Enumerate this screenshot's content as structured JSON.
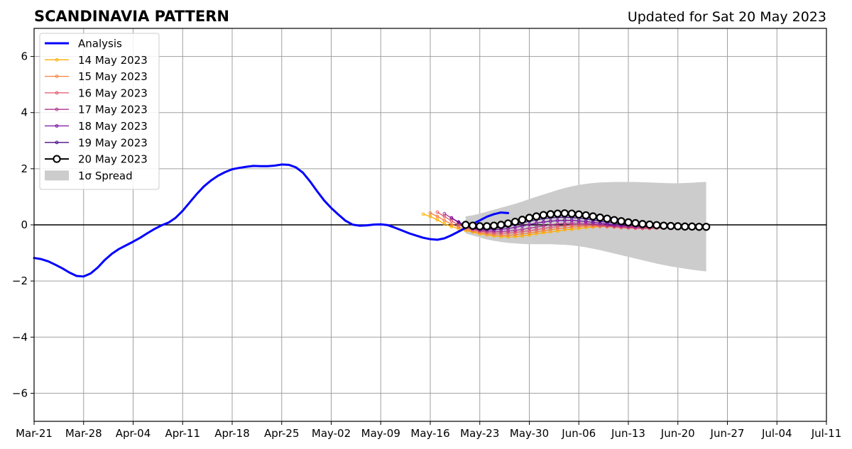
{
  "chart_data": {
    "type": "line",
    "title": "SCANDINAVIA PATTERN",
    "subtitle": "Updated for Sat 20 May 2023",
    "xlabel": "",
    "ylabel": "",
    "ylim": [
      -7,
      7
    ],
    "xlim": [
      "2023-03-21",
      "2023-07-11"
    ],
    "x_ticks": [
      "Mar-21",
      "Mar-28",
      "Apr-04",
      "Apr-11",
      "Apr-18",
      "Apr-25",
      "May-02",
      "May-09",
      "May-16",
      "May-23",
      "May-30",
      "Jun-06",
      "Jun-13",
      "Jun-20",
      "Jun-27",
      "Jul-04",
      "Jul-11"
    ],
    "y_ticks": [
      -6,
      -4,
      -2,
      0,
      2,
      4,
      6
    ],
    "y_tick_labels": [
      "−6",
      "−4",
      "−2",
      "0",
      "2",
      "4",
      "6"
    ],
    "grid": true,
    "legend_position": "upper-left",
    "analysis": {
      "name": "Analysis",
      "color": "#0000ff",
      "start_date": "2023-03-21",
      "values": [
        -1.18,
        -1.22,
        -1.3,
        -1.42,
        -1.55,
        -1.7,
        -1.82,
        -1.84,
        -1.73,
        -1.52,
        -1.25,
        -1.03,
        -0.86,
        -0.73,
        -0.6,
        -0.46,
        -0.3,
        -0.15,
        -0.02,
        0.08,
        0.25,
        0.5,
        0.8,
        1.1,
        1.37,
        1.58,
        1.75,
        1.88,
        1.98,
        2.03,
        2.07,
        2.1,
        2.09,
        2.09,
        2.11,
        2.15,
        2.14,
        2.05,
        1.86,
        1.55,
        1.2,
        0.87,
        0.6,
        0.37,
        0.15,
        0.01,
        -0.03,
        -0.02,
        0.01,
        0.02,
        -0.01,
        -0.1,
        -0.2,
        -0.3,
        -0.38,
        -0.46,
        -0.51,
        -0.53,
        -0.48,
        -0.37,
        -0.24,
        -0.11,
        0.03,
        0.16,
        0.29,
        0.38,
        0.44,
        0.42
      ]
    },
    "forecasts": [
      {
        "name": "14 May 2023",
        "color": "#ffb000",
        "start_date": "2023-05-15",
        "values": [
          0.38,
          0.3,
          0.18,
          0.04,
          -0.06,
          -0.14,
          -0.2,
          -0.26,
          -0.32,
          -0.36,
          -0.4,
          -0.42,
          -0.43,
          -0.42,
          -0.4,
          -0.36,
          -0.32,
          -0.28,
          -0.25,
          -0.22,
          -0.18,
          -0.16,
          -0.13,
          -0.1,
          -0.08,
          -0.06,
          -0.05,
          -0.05,
          -0.05,
          -0.06,
          -0.07,
          -0.08,
          -0.09,
          -0.1,
          -0.1
        ]
      },
      {
        "name": "15 May 2023",
        "color": "#f7823a",
        "start_date": "2023-05-16",
        "values": [
          0.42,
          0.3,
          0.16,
          0.02,
          -0.08,
          -0.16,
          -0.22,
          -0.28,
          -0.32,
          -0.35,
          -0.37,
          -0.37,
          -0.35,
          -0.32,
          -0.29,
          -0.25,
          -0.21,
          -0.17,
          -0.14,
          -0.11,
          -0.08,
          -0.06,
          -0.05,
          -0.05,
          -0.06,
          -0.07,
          -0.08,
          -0.1,
          -0.11,
          -0.12,
          -0.12,
          -0.12,
          -0.11,
          -0.1
        ]
      },
      {
        "name": "16 May 2023",
        "color": "#e4576b",
        "start_date": "2023-05-17",
        "values": [
          0.45,
          0.3,
          0.14,
          0.0,
          -0.1,
          -0.18,
          -0.23,
          -0.27,
          -0.29,
          -0.3,
          -0.29,
          -0.27,
          -0.24,
          -0.21,
          -0.17,
          -0.13,
          -0.09,
          -0.06,
          -0.03,
          -0.01,
          0.0,
          0.0,
          -0.01,
          -0.03,
          -0.05,
          -0.07,
          -0.09,
          -0.11,
          -0.12,
          -0.13,
          -0.13,
          -0.12,
          -0.1
        ]
      },
      {
        "name": "17 May 2023",
        "color": "#b0308f",
        "start_date": "2023-05-18",
        "values": [
          0.4,
          0.24,
          0.08,
          -0.06,
          -0.14,
          -0.2,
          -0.23,
          -0.24,
          -0.24,
          -0.22,
          -0.2,
          -0.16,
          -0.12,
          -0.08,
          -0.04,
          0.0,
          0.03,
          0.05,
          0.06,
          0.06,
          0.05,
          0.03,
          0.01,
          -0.02,
          -0.04,
          -0.06,
          -0.08,
          -0.09,
          -0.1,
          -0.1,
          -0.09,
          -0.08
        ]
      },
      {
        "name": "18 May 2023",
        "color": "#7a10a0",
        "start_date": "2023-05-19",
        "values": [
          0.25,
          0.1,
          -0.04,
          -0.12,
          -0.17,
          -0.18,
          -0.18,
          -0.16,
          -0.13,
          -0.09,
          -0.04,
          0.01,
          0.06,
          0.1,
          0.13,
          0.15,
          0.16,
          0.16,
          0.14,
          0.12,
          0.09,
          0.06,
          0.03,
          0.0,
          -0.02,
          -0.04,
          -0.05,
          -0.06,
          -0.06,
          -0.06,
          -0.05
        ]
      },
      {
        "name": "19 May 2023",
        "color": "#4a0c8c",
        "start_date": "2023-05-20",
        "values": [
          0.1,
          -0.02,
          -0.1,
          -0.14,
          -0.15,
          -0.13,
          -0.1,
          -0.05,
          0.01,
          0.07,
          0.13,
          0.18,
          0.22,
          0.25,
          0.27,
          0.27,
          0.26,
          0.24,
          0.21,
          0.17,
          0.13,
          0.09,
          0.06,
          0.03,
          0.01,
          -0.01,
          -0.02,
          -0.03,
          -0.03,
          -0.03
        ]
      }
    ],
    "current": {
      "name": "20 May 2023",
      "color": "#000000",
      "start_date": "2023-05-21",
      "values": [
        0.0,
        -0.03,
        -0.05,
        -0.05,
        -0.03,
        0.0,
        0.05,
        0.11,
        0.18,
        0.25,
        0.3,
        0.35,
        0.38,
        0.4,
        0.41,
        0.4,
        0.37,
        0.34,
        0.3,
        0.26,
        0.22,
        0.17,
        0.13,
        0.09,
        0.06,
        0.03,
        0.01,
        -0.01,
        -0.03,
        -0.04,
        -0.05,
        -0.06,
        -0.06,
        -0.07,
        -0.07
      ]
    },
    "spread": {
      "name": "1σ Spread",
      "color": "#cccccc",
      "start_date": "2023-05-21",
      "upper": [
        0.3,
        0.34,
        0.4,
        0.47,
        0.54,
        0.61,
        0.68,
        0.75,
        0.83,
        0.92,
        1.0,
        1.08,
        1.16,
        1.24,
        1.31,
        1.37,
        1.42,
        1.46,
        1.49,
        1.51,
        1.52,
        1.53,
        1.53,
        1.53,
        1.53,
        1.52,
        1.51,
        1.5,
        1.49,
        1.48,
        1.48,
        1.49,
        1.5,
        1.52,
        1.53
      ],
      "lower": [
        -0.3,
        -0.38,
        -0.45,
        -0.52,
        -0.57,
        -0.61,
        -0.64,
        -0.66,
        -0.68,
        -0.69,
        -0.69,
        -0.69,
        -0.69,
        -0.7,
        -0.71,
        -0.73,
        -0.76,
        -0.8,
        -0.85,
        -0.9,
        -0.96,
        -1.02,
        -1.08,
        -1.14,
        -1.2,
        -1.26,
        -1.32,
        -1.38,
        -1.43,
        -1.48,
        -1.52,
        -1.56,
        -1.6,
        -1.63,
        -1.66
      ]
    }
  }
}
